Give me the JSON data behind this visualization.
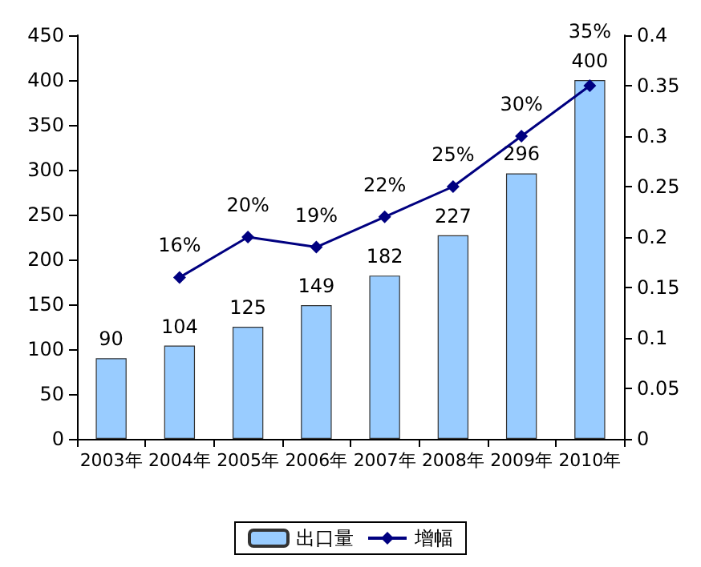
{
  "chart_data": {
    "type": "bar",
    "categories": [
      "2003年",
      "2004年",
      "2005年",
      "2006年",
      "2007年",
      "2008年",
      "2009年",
      "2010年"
    ],
    "series": [
      {
        "name": "出口量",
        "color": "#99ccff",
        "values": [
          90,
          104,
          125,
          149,
          182,
          227,
          296,
          400
        ],
        "value_labels": [
          "90",
          "104",
          "125",
          "149",
          "182",
          "227",
          "296",
          "400"
        ]
      },
      {
        "name": "增幅",
        "type": "line",
        "axis": "y2",
        "color": "#000080",
        "marker": "diamond",
        "values": [
          null,
          0.16,
          0.2,
          0.19,
          0.22,
          0.25,
          0.3,
          0.35
        ],
        "value_labels": [
          null,
          "16%",
          "20%",
          "19%",
          "22%",
          "25%",
          "30%",
          "35%"
        ]
      }
    ],
    "ylim": [
      0,
      450
    ],
    "yticks": [
      0,
      50,
      100,
      150,
      200,
      250,
      300,
      350,
      400,
      450
    ],
    "y2lim": [
      0,
      0.4
    ],
    "y2ticks": [
      0,
      0.05,
      0.1,
      0.15,
      0.2,
      0.25,
      0.3,
      0.35,
      0.4
    ],
    "grid": false,
    "legend": "bottom"
  }
}
